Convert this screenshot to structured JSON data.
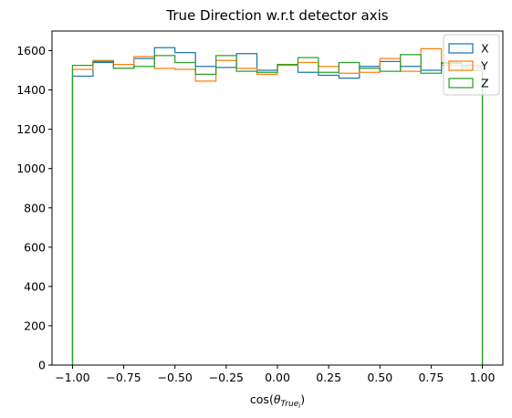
{
  "chart_data": {
    "type": "histogram-step",
    "title": "True Direction w.r.t detector axis",
    "xlabel": {
      "text": "cos(",
      "theta": "θ",
      "sub": "True",
      "sub2": "i",
      "close": ")"
    },
    "ylabel": "",
    "xlim": [
      -1.1,
      1.1
    ],
    "ylim": [
      0,
      1700
    ],
    "bin_edges": [
      -1.0,
      -0.9,
      -0.8,
      -0.7,
      -0.6,
      -0.5,
      -0.4,
      -0.3,
      -0.2,
      -0.1,
      0.0,
      0.1,
      0.2,
      0.3,
      0.4,
      0.5,
      0.6,
      0.7,
      0.8,
      0.9,
      1.0
    ],
    "x_ticks": [
      -1.0,
      -0.75,
      -0.5,
      -0.25,
      0.0,
      0.25,
      0.5,
      0.75,
      1.0
    ],
    "x_tick_labels": [
      "−1.00",
      "−0.75",
      "−0.50",
      "−0.25",
      "0.00",
      "0.25",
      "0.50",
      "0.75",
      "1.00"
    ],
    "y_ticks": [
      0,
      200,
      400,
      600,
      800,
      1000,
      1200,
      1400,
      1600
    ],
    "y_tick_labels": [
      "0",
      "200",
      "400",
      "600",
      "800",
      "1000",
      "1200",
      "1400",
      "1600"
    ],
    "grid": false,
    "legend_position": "top-right",
    "series": [
      {
        "name": "X",
        "color": "#1f77b4",
        "values": [
          1470,
          1540,
          1510,
          1560,
          1615,
          1590,
          1520,
          1515,
          1585,
          1500,
          1530,
          1490,
          1475,
          1460,
          1520,
          1545,
          1520,
          1500,
          1535,
          1525
        ]
      },
      {
        "name": "Y",
        "color": "#ff7f0e",
        "values": [
          1505,
          1550,
          1530,
          1570,
          1510,
          1505,
          1445,
          1550,
          1510,
          1480,
          1525,
          1540,
          1520,
          1485,
          1490,
          1560,
          1495,
          1610,
          1525,
          1515
        ]
      },
      {
        "name": "Z",
        "color": "#2ca02c",
        "values": [
          1525,
          1545,
          1510,
          1520,
          1575,
          1540,
          1480,
          1575,
          1495,
          1490,
          1530,
          1565,
          1490,
          1540,
          1510,
          1495,
          1580,
          1485,
          1540,
          1500
        ]
      }
    ]
  }
}
